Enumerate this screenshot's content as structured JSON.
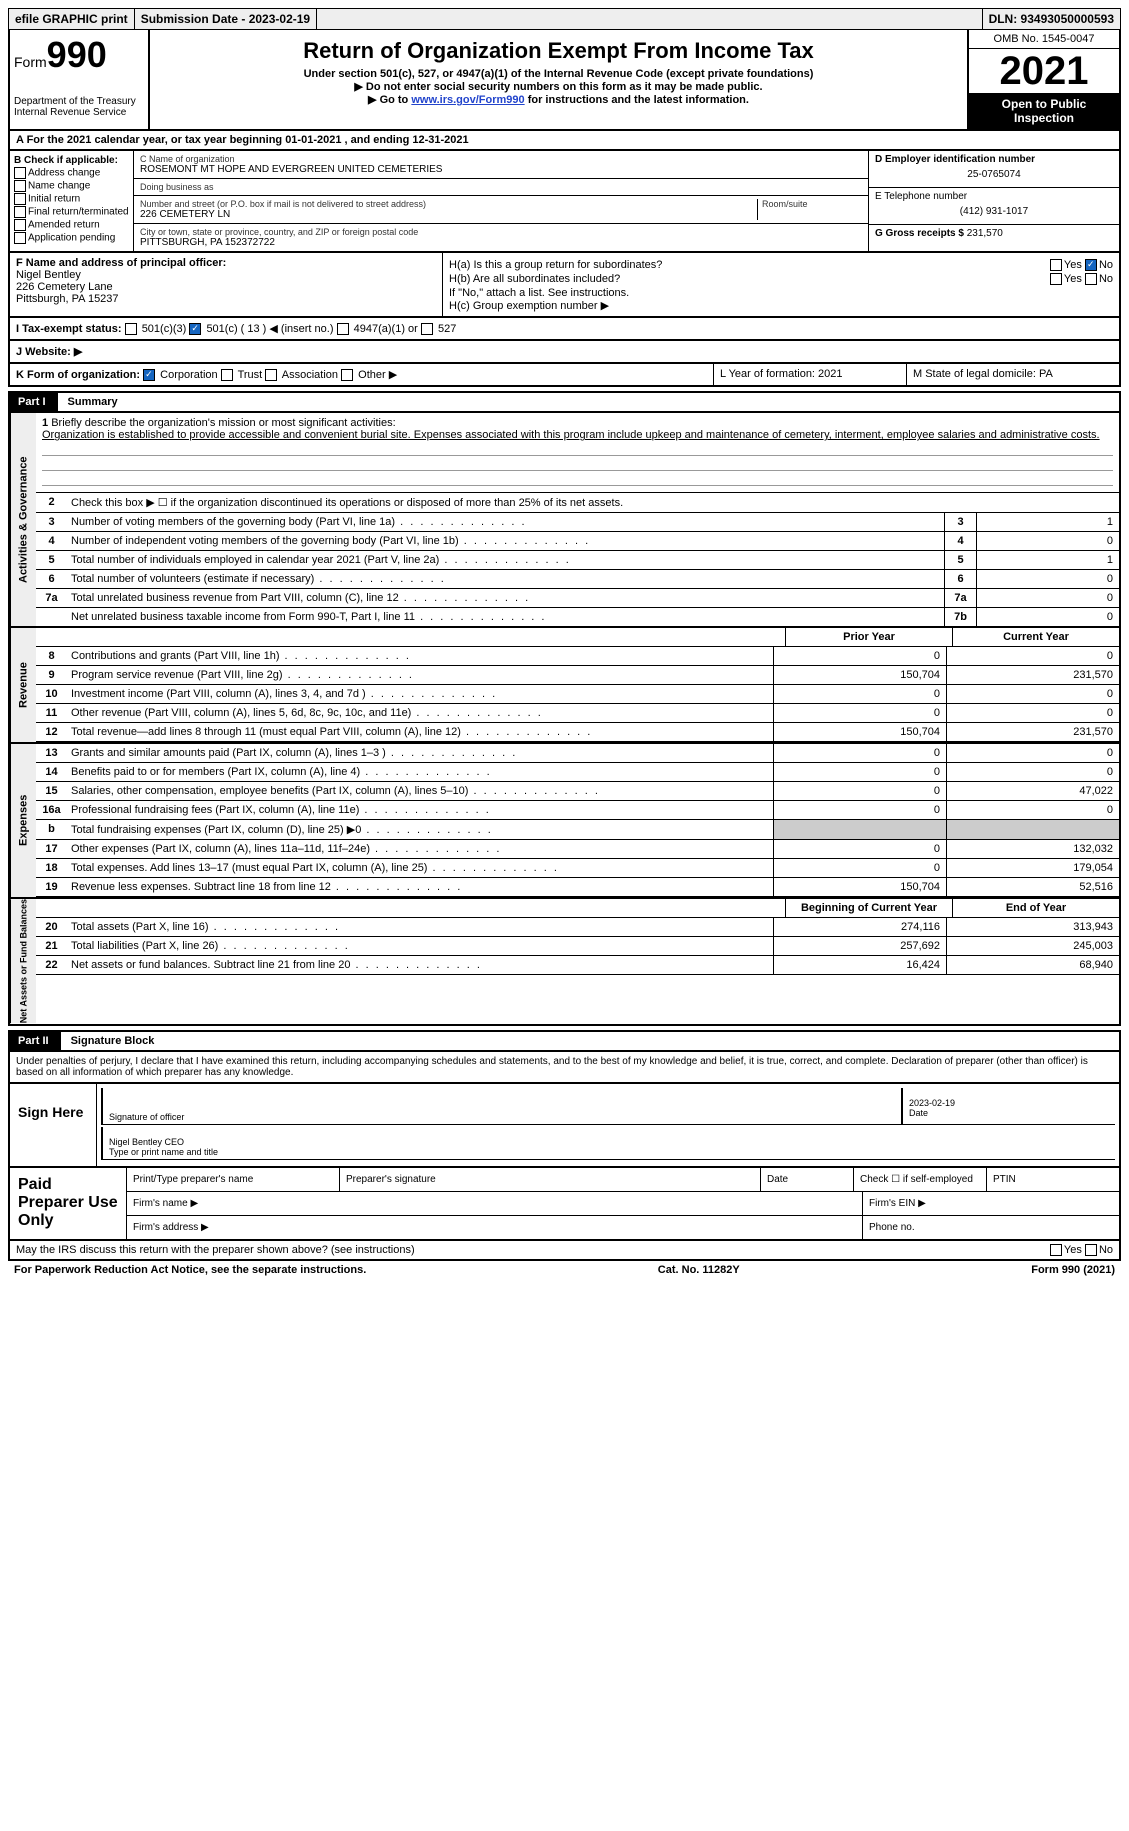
{
  "topbar": {
    "efile": "efile GRAPHIC print",
    "submission": "Submission Date - 2023-02-19",
    "dln": "DLN: 93493050000593"
  },
  "header": {
    "form_label": "Form",
    "form_num": "990",
    "dept": "Department of the Treasury\nInternal Revenue Service",
    "title": "Return of Organization Exempt From Income Tax",
    "sub1": "Under section 501(c), 527, or 4947(a)(1) of the Internal Revenue Code (except private foundations)",
    "sub2": "Do not enter social security numbers on this form as it may be made public.",
    "sub3_pre": "Go to ",
    "sub3_link": "www.irs.gov/Form990",
    "sub3_post": " for instructions and the latest information.",
    "omb": "OMB No. 1545-0047",
    "year": "2021",
    "open": "Open to Public Inspection"
  },
  "rowA": "A For the 2021 calendar year, or tax year beginning 01-01-2021   , and ending 12-31-2021",
  "checkB": {
    "label": "B Check if applicable:",
    "items": [
      "Address change",
      "Name change",
      "Initial return",
      "Final return/terminated",
      "Amended return",
      "Application pending"
    ]
  },
  "boxC": {
    "label": "C Name of organization",
    "name": "ROSEMONT MT HOPE AND EVERGREEN UNITED CEMETERIES",
    "dba_label": "Doing business as",
    "dba": "",
    "addr_label": "Number and street (or P.O. box if mail is not delivered to street address)",
    "room_label": "Room/suite",
    "addr": "226 CEMETERY LN",
    "city_label": "City or town, state or province, country, and ZIP or foreign postal code",
    "city": "PITTSBURGH, PA  152372722"
  },
  "boxD": {
    "label": "D Employer identification number",
    "val": "25-0765074"
  },
  "boxE": {
    "label": "E Telephone number",
    "val": "(412) 931-1017"
  },
  "boxG": {
    "label": "G Gross receipts $",
    "val": "231,570"
  },
  "boxF": {
    "label": "F Name and address of principal officer:",
    "name": "Nigel Bentley",
    "addr1": "226 Cemetery Lane",
    "addr2": "Pittsburgh, PA  15237"
  },
  "boxH": {
    "a": "H(a)  Is this a group return for subordinates?",
    "b": "H(b)  Are all subordinates included?",
    "note": "If \"No,\" attach a list. See instructions.",
    "c": "H(c)  Group exemption number ▶",
    "yes": "Yes",
    "no": "No"
  },
  "boxI": {
    "label": "I  Tax-exempt status:",
    "opt1": "501(c)(3)",
    "opt2": "501(c) ( 13 ) ◀ (insert no.)",
    "opt3": "4947(a)(1) or",
    "opt4": "527"
  },
  "boxJ": "J  Website: ▶",
  "boxK": {
    "label": "K Form of organization:",
    "opts": [
      "Corporation",
      "Trust",
      "Association",
      "Other ▶"
    ]
  },
  "boxL": "L Year of formation: 2021",
  "boxM": "M State of legal domicile: PA",
  "part1": {
    "label": "Part I",
    "title": "Summary"
  },
  "mission": {
    "num": "1",
    "label": "Briefly describe the organization's mission or most significant activities:",
    "text": "Organization is established to provide accessible and convenient burial site. Expenses associated with this program include upkeep and maintenance of cemetery, interment, employee salaries and administrative costs."
  },
  "gov": {
    "tab": "Activities & Governance",
    "line2": "Check this box ▶ ☐ if the organization discontinued its operations or disposed of more than 25% of its net assets.",
    "rows": [
      {
        "n": "3",
        "t": "Number of voting members of the governing body (Part VI, line 1a)",
        "b": "3",
        "v": "1"
      },
      {
        "n": "4",
        "t": "Number of independent voting members of the governing body (Part VI, line 1b)",
        "b": "4",
        "v": "0"
      },
      {
        "n": "5",
        "t": "Total number of individuals employed in calendar year 2021 (Part V, line 2a)",
        "b": "5",
        "v": "1"
      },
      {
        "n": "6",
        "t": "Total number of volunteers (estimate if necessary)",
        "b": "6",
        "v": "0"
      },
      {
        "n": "7a",
        "t": "Total unrelated business revenue from Part VIII, column (C), line 12",
        "b": "7a",
        "v": "0"
      },
      {
        "n": "",
        "t": "Net unrelated business taxable income from Form 990-T, Part I, line 11",
        "b": "7b",
        "v": "0"
      }
    ]
  },
  "revHead": {
    "prior": "Prior Year",
    "current": "Current Year"
  },
  "revenue": {
    "tab": "Revenue",
    "rows": [
      {
        "n": "8",
        "t": "Contributions and grants (Part VIII, line 1h)",
        "p": "0",
        "c": "0"
      },
      {
        "n": "9",
        "t": "Program service revenue (Part VIII, line 2g)",
        "p": "150,704",
        "c": "231,570"
      },
      {
        "n": "10",
        "t": "Investment income (Part VIII, column (A), lines 3, 4, and 7d )",
        "p": "0",
        "c": "0"
      },
      {
        "n": "11",
        "t": "Other revenue (Part VIII, column (A), lines 5, 6d, 8c, 9c, 10c, and 11e)",
        "p": "0",
        "c": "0"
      },
      {
        "n": "12",
        "t": "Total revenue—add lines 8 through 11 (must equal Part VIII, column (A), line 12)",
        "p": "150,704",
        "c": "231,570"
      }
    ]
  },
  "expenses": {
    "tab": "Expenses",
    "rows": [
      {
        "n": "13",
        "t": "Grants and similar amounts paid (Part IX, column (A), lines 1–3 )",
        "p": "0",
        "c": "0"
      },
      {
        "n": "14",
        "t": "Benefits paid to or for members (Part IX, column (A), line 4)",
        "p": "0",
        "c": "0"
      },
      {
        "n": "15",
        "t": "Salaries, other compensation, employee benefits (Part IX, column (A), lines 5–10)",
        "p": "0",
        "c": "47,022"
      },
      {
        "n": "16a",
        "t": "Professional fundraising fees (Part IX, column (A), line 11e)",
        "p": "0",
        "c": "0"
      },
      {
        "n": "b",
        "t": "Total fundraising expenses (Part IX, column (D), line 25) ▶0",
        "p": "shade",
        "c": "shade"
      },
      {
        "n": "17",
        "t": "Other expenses (Part IX, column (A), lines 11a–11d, 11f–24e)",
        "p": "0",
        "c": "132,032"
      },
      {
        "n": "18",
        "t": "Total expenses. Add lines 13–17 (must equal Part IX, column (A), line 25)",
        "p": "0",
        "c": "179,054"
      },
      {
        "n": "19",
        "t": "Revenue less expenses. Subtract line 18 from line 12",
        "p": "150,704",
        "c": "52,516"
      }
    ]
  },
  "netHead": {
    "begin": "Beginning of Current Year",
    "end": "End of Year"
  },
  "netassets": {
    "tab": "Net Assets or Fund Balances",
    "rows": [
      {
        "n": "20",
        "t": "Total assets (Part X, line 16)",
        "p": "274,116",
        "c": "313,943"
      },
      {
        "n": "21",
        "t": "Total liabilities (Part X, line 26)",
        "p": "257,692",
        "c": "245,003"
      },
      {
        "n": "22",
        "t": "Net assets or fund balances. Subtract line 21 from line 20",
        "p": "16,424",
        "c": "68,940"
      }
    ]
  },
  "part2": {
    "label": "Part II",
    "title": "Signature Block"
  },
  "sigIntro": "Under penalties of perjury, I declare that I have examined this return, including accompanying schedules and statements, and to the best of my knowledge and belief, it is true, correct, and complete. Declaration of preparer (other than officer) is based on all information of which preparer has any knowledge.",
  "sign": {
    "left": "Sign Here",
    "sig_label": "Signature of officer",
    "date": "2023-02-19",
    "date_label": "Date",
    "name": "Nigel Bentley  CEO",
    "name_label": "Type or print name and title"
  },
  "prep": {
    "left": "Paid Preparer Use Only",
    "h1": "Print/Type preparer's name",
    "h2": "Preparer's signature",
    "h3": "Date",
    "h4": "Check ☐ if self-employed",
    "h5": "PTIN",
    "firm_name": "Firm's name  ▶",
    "firm_ein": "Firm's EIN ▶",
    "firm_addr": "Firm's address ▶",
    "phone": "Phone no."
  },
  "footer": {
    "discuss": "May the IRS discuss this return with the preparer shown above? (see instructions)",
    "yes": "Yes",
    "no": "No",
    "paperwork": "For Paperwork Reduction Act Notice, see the separate instructions.",
    "cat": "Cat. No. 11282Y",
    "form": "Form 990 (2021)"
  }
}
